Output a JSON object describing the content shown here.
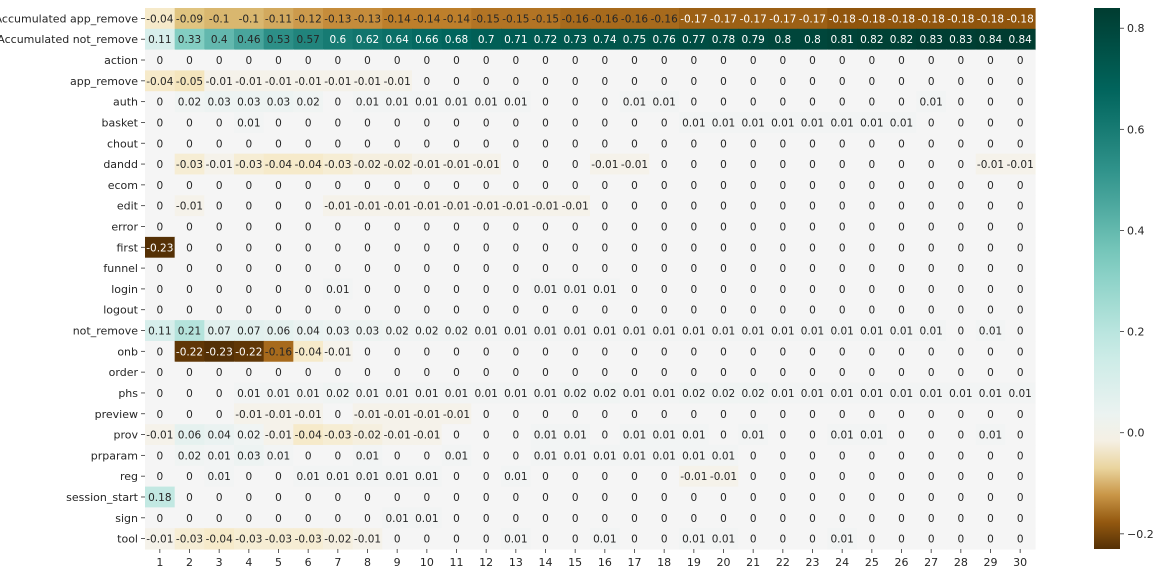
{
  "chart_data": {
    "type": "heatmap",
    "title": "",
    "xlabel": "",
    "ylabel": "",
    "colormap": "BrBG",
    "vlim": [
      -0.23,
      0.84
    ],
    "colorbar_ticks": [
      -0.2,
      0.0,
      0.2,
      0.4,
      0.6,
      0.8
    ],
    "colorbar_tick_labels": [
      "−0.2",
      "0.0",
      "0.2",
      "0.4",
      "0.6",
      "0.8"
    ],
    "x": [
      "1",
      "2",
      "3",
      "4",
      "5",
      "6",
      "7",
      "8",
      "9",
      "10",
      "11",
      "12",
      "13",
      "14",
      "15",
      "16",
      "17",
      "18",
      "19",
      "20",
      "21",
      "22",
      "23",
      "24",
      "25",
      "26",
      "27",
      "28",
      "29",
      "30"
    ],
    "y": [
      "Accumulated app_remove",
      "Accumulated not_remove",
      "action",
      "app_remove",
      "auth",
      "basket",
      "chout",
      "dandd",
      "ecom",
      "edit",
      "error",
      "first",
      "funnel",
      "login",
      "logout",
      "not_remove",
      "onb",
      "order",
      "phs",
      "preview",
      "prov",
      "prparam",
      "reg",
      "session_start",
      "sign",
      "tool"
    ],
    "values": [
      [
        -0.04,
        -0.09,
        -0.1,
        -0.1,
        -0.11,
        -0.12,
        -0.13,
        -0.13,
        -0.14,
        -0.14,
        -0.14,
        -0.15,
        -0.15,
        -0.15,
        -0.16,
        -0.16,
        -0.16,
        -0.16,
        -0.17,
        -0.17,
        -0.17,
        -0.17,
        -0.17,
        -0.18,
        -0.18,
        -0.18,
        -0.18,
        -0.18,
        -0.18,
        -0.18
      ],
      [
        0.11,
        0.33,
        0.4,
        0.46,
        0.53,
        0.57,
        0.6,
        0.62,
        0.64,
        0.66,
        0.68,
        0.7,
        0.71,
        0.72,
        0.73,
        0.74,
        0.75,
        0.76,
        0.77,
        0.78,
        0.79,
        0.8,
        0.8,
        0.81,
        0.82,
        0.82,
        0.83,
        0.83,
        0.84,
        0.84
      ],
      [
        0,
        0,
        0,
        0,
        0,
        0,
        0,
        0,
        0,
        0,
        0,
        0,
        0,
        0,
        0,
        0,
        0,
        0,
        0,
        0,
        0,
        0,
        0,
        0,
        0,
        0,
        0,
        0,
        0,
        0
      ],
      [
        -0.04,
        -0.05,
        -0.01,
        -0.01,
        -0.01,
        -0.01,
        -0.01,
        -0.01,
        -0.01,
        0,
        0,
        0,
        0,
        0,
        0,
        0,
        0,
        0,
        0,
        0,
        0,
        0,
        0,
        0,
        0,
        0,
        0,
        0,
        0,
        0
      ],
      [
        0,
        0.02,
        0.03,
        0.03,
        0.03,
        0.02,
        0,
        0.01,
        0.01,
        0.01,
        0.01,
        0.01,
        0.01,
        0,
        0,
        0,
        0.01,
        0.01,
        0,
        0,
        0,
        0,
        0,
        0,
        0,
        0,
        0.01,
        0,
        0,
        0
      ],
      [
        0,
        0,
        0,
        0.01,
        0,
        0,
        0,
        0,
        0,
        0,
        0,
        0,
        0,
        0,
        0,
        0,
        0,
        0,
        0.01,
        0.01,
        0.01,
        0.01,
        0.01,
        0.01,
        0.01,
        0.01,
        0,
        0,
        0,
        0
      ],
      [
        0,
        0,
        0,
        0,
        0,
        0,
        0,
        0,
        0,
        0,
        0,
        0,
        0,
        0,
        0,
        0,
        0,
        0,
        0,
        0,
        0,
        0,
        0,
        0,
        0,
        0,
        0,
        0,
        0,
        0
      ],
      [
        0,
        -0.03,
        -0.01,
        -0.03,
        -0.04,
        -0.04,
        -0.03,
        -0.02,
        -0.02,
        -0.01,
        -0.01,
        -0.01,
        0,
        0,
        0,
        -0.01,
        -0.01,
        0,
        0,
        0,
        0,
        0,
        0,
        0,
        0,
        0,
        0,
        0,
        -0.01,
        -0.01
      ],
      [
        0,
        0,
        0,
        0,
        0,
        0,
        0,
        0,
        0,
        0,
        0,
        0,
        0,
        0,
        0,
        0,
        0,
        0,
        0,
        0,
        0,
        0,
        0,
        0,
        0,
        0,
        0,
        0,
        0,
        0
      ],
      [
        0,
        -0.01,
        0,
        0,
        0,
        0,
        -0.01,
        -0.01,
        -0.01,
        -0.01,
        -0.01,
        -0.01,
        -0.01,
        -0.01,
        -0.01,
        0,
        0,
        0,
        0,
        0,
        0,
        0,
        0,
        0,
        0,
        0,
        0,
        0,
        0,
        0
      ],
      [
        0,
        0,
        0,
        0,
        0,
        0,
        0,
        0,
        0,
        0,
        0,
        0,
        0,
        0,
        0,
        0,
        0,
        0,
        0,
        0,
        0,
        0,
        0,
        0,
        0,
        0,
        0,
        0,
        0,
        0
      ],
      [
        -0.23,
        0,
        0,
        0,
        0,
        0,
        0,
        0,
        0,
        0,
        0,
        0,
        0,
        0,
        0,
        0,
        0,
        0,
        0,
        0,
        0,
        0,
        0,
        0,
        0,
        0,
        0,
        0,
        0,
        0
      ],
      [
        0,
        0,
        0,
        0,
        0,
        0,
        0,
        0,
        0,
        0,
        0,
        0,
        0,
        0,
        0,
        0,
        0,
        0,
        0,
        0,
        0,
        0,
        0,
        0,
        0,
        0,
        0,
        0,
        0,
        0
      ],
      [
        0,
        0,
        0,
        0,
        0,
        0,
        0.01,
        0,
        0,
        0,
        0,
        0,
        0,
        0.01,
        0.01,
        0.01,
        0,
        0,
        0,
        0,
        0,
        0,
        0,
        0,
        0,
        0,
        0,
        0,
        0,
        0
      ],
      [
        0,
        0,
        0,
        0,
        0,
        0,
        0,
        0,
        0,
        0,
        0,
        0,
        0,
        0,
        0,
        0,
        0,
        0,
        0,
        0,
        0,
        0,
        0,
        0,
        0,
        0,
        0,
        0,
        0,
        0
      ],
      [
        0.11,
        0.21,
        0.07,
        0.07,
        0.06,
        0.04,
        0.03,
        0.03,
        0.02,
        0.02,
        0.02,
        0.01,
        0.01,
        0.01,
        0.01,
        0.01,
        0.01,
        0.01,
        0.01,
        0.01,
        0.01,
        0.01,
        0.01,
        0.01,
        0.01,
        0.01,
        0.01,
        0,
        0.01,
        0
      ],
      [
        0,
        -0.22,
        -0.23,
        -0.22,
        -0.16,
        -0.04,
        -0.01,
        0,
        0,
        0,
        0,
        0,
        0,
        0,
        0,
        0,
        0,
        0,
        0,
        0,
        0,
        0,
        0,
        0,
        0,
        0,
        0,
        0,
        0,
        0
      ],
      [
        0,
        0,
        0,
        0,
        0,
        0,
        0,
        0,
        0,
        0,
        0,
        0,
        0,
        0,
        0,
        0,
        0,
        0,
        0,
        0,
        0,
        0,
        0,
        0,
        0,
        0,
        0,
        0,
        0,
        0
      ],
      [
        0,
        0,
        0,
        0.01,
        0.01,
        0.01,
        0.02,
        0.01,
        0.01,
        0.01,
        0.01,
        0.01,
        0.01,
        0.01,
        0.02,
        0.02,
        0.01,
        0.01,
        0.02,
        0.02,
        0.02,
        0.01,
        0.01,
        0.01,
        0.01,
        0.01,
        0.01,
        0.01,
        0.01,
        0.01
      ],
      [
        0,
        0,
        0,
        -0.01,
        -0.01,
        -0.01,
        0,
        -0.01,
        -0.01,
        -0.01,
        -0.01,
        0,
        0,
        0,
        0,
        0,
        0,
        0,
        0,
        0,
        0,
        0,
        0,
        0,
        0,
        0,
        0,
        0,
        0,
        0
      ],
      [
        -0.01,
        0.06,
        0.04,
        0.02,
        -0.01,
        -0.04,
        -0.03,
        -0.02,
        -0.01,
        -0.01,
        0,
        0,
        0,
        0.01,
        0.01,
        0,
        0.01,
        0.01,
        0.01,
        0,
        0.01,
        0,
        0,
        0.01,
        0.01,
        0,
        0,
        0,
        0.01,
        0
      ],
      [
        0,
        0.02,
        0.01,
        0.03,
        0.01,
        0,
        0,
        0.01,
        0,
        0,
        0.01,
        0,
        0,
        0.01,
        0.01,
        0.01,
        0.01,
        0.01,
        0.01,
        0.01,
        0,
        0,
        0,
        0,
        0,
        0,
        0,
        0,
        0,
        0
      ],
      [
        0,
        0,
        0.01,
        0,
        0,
        0.01,
        0.01,
        0.01,
        0.01,
        0.01,
        0,
        0,
        0.01,
        0,
        0,
        0,
        0,
        0,
        -0.01,
        -0.01,
        0,
        0,
        0,
        0,
        0,
        0,
        0,
        0,
        0,
        0
      ],
      [
        0.18,
        0,
        0,
        0,
        0,
        0,
        0,
        0,
        0,
        0,
        0,
        0,
        0,
        0,
        0,
        0,
        0,
        0,
        0,
        0,
        0,
        0,
        0,
        0,
        0,
        0,
        0,
        0,
        0,
        0
      ],
      [
        0,
        0,
        0,
        0,
        0,
        0,
        0,
        0,
        0.01,
        0.01,
        0,
        0,
        0,
        0,
        0,
        0,
        0,
        0,
        0,
        0,
        0,
        0,
        0,
        0,
        0,
        0,
        0,
        0,
        0,
        0
      ],
      [
        -0.01,
        -0.03,
        -0.04,
        -0.03,
        -0.03,
        -0.03,
        -0.02,
        -0.01,
        0,
        0,
        0,
        0,
        0.01,
        0,
        0,
        0.01,
        0,
        0,
        0.01,
        0.01,
        0,
        0,
        0,
        0.01,
        0,
        0,
        0,
        0,
        0,
        0
      ]
    ]
  }
}
